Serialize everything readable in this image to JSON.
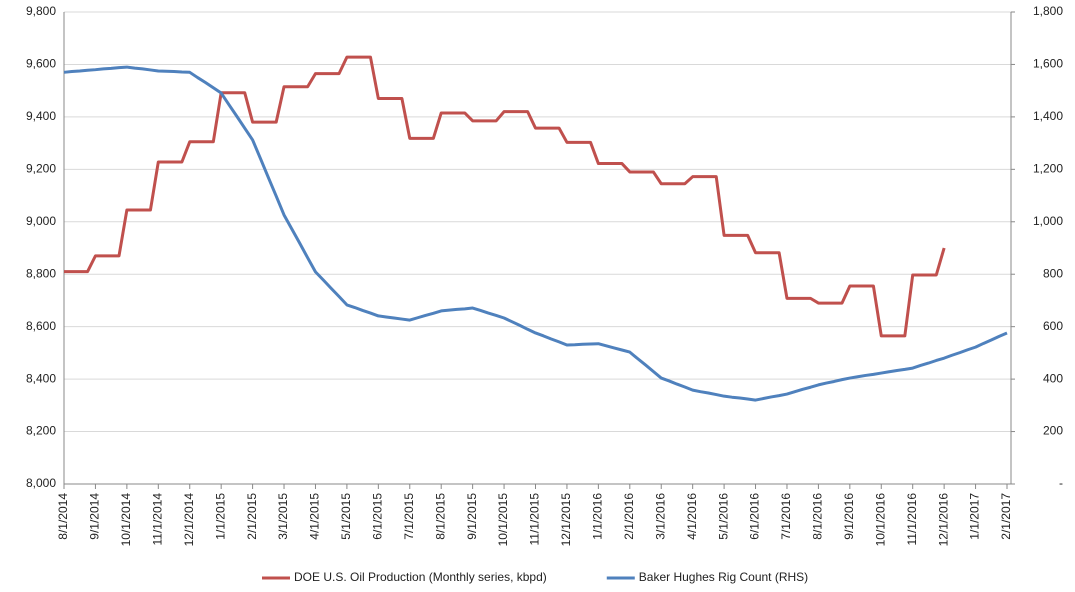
{
  "chart_data": {
    "type": "line",
    "categories": [
      "8/1/2014",
      null,
      null,
      null,
      "9/1/2014",
      null,
      null,
      null,
      "10/1/2014",
      null,
      null,
      null,
      "11/1/2014",
      null,
      null,
      null,
      "12/1/2014",
      null,
      null,
      null,
      "1/1/2015",
      null,
      null,
      null,
      "2/1/2015",
      null,
      null,
      null,
      "3/1/2015",
      null,
      null,
      null,
      "4/1/2015",
      null,
      null,
      null,
      "5/1/2015",
      null,
      null,
      null,
      "6/1/2015",
      null,
      null,
      null,
      "7/1/2015",
      null,
      null,
      null,
      "8/1/2015",
      null,
      null,
      null,
      "9/1/2015",
      null,
      null,
      null,
      "10/1/2015",
      null,
      null,
      null,
      "11/1/2015",
      null,
      null,
      null,
      "12/1/2015",
      null,
      null,
      null,
      "1/1/2016",
      null,
      null,
      null,
      "2/1/2016",
      null,
      null,
      null,
      "3/1/2016",
      null,
      null,
      null,
      "4/1/2016",
      null,
      null,
      null,
      "5/1/2016",
      null,
      null,
      null,
      "6/1/2016",
      null,
      null,
      null,
      "7/1/2016",
      null,
      null,
      null,
      "8/1/2016",
      null,
      null,
      null,
      "9/1/2016",
      null,
      null,
      null,
      "10/1/2016",
      null,
      null,
      null,
      "11/1/2016",
      null,
      null,
      null,
      "12/1/2016",
      null,
      null,
      null,
      "1/1/2017",
      null,
      null,
      null,
      "2/1/2017"
    ],
    "series": [
      {
        "name": "DOE U.S. Oil Production (Monthly series, kbpd)",
        "color": "#c0504d",
        "values": [
          8810,
          8810,
          8810,
          8810,
          8870,
          8870,
          8870,
          8870,
          9045,
          9045,
          9045,
          9045,
          9228,
          9228,
          9228,
          9228,
          9305,
          9305,
          9305,
          9305,
          9492,
          9492,
          9492,
          9492,
          9380,
          9380,
          9380,
          9380,
          9515,
          9515,
          9515,
          9515,
          9565,
          9565,
          9565,
          9565,
          9628,
          9628,
          9628,
          9628,
          9470,
          9470,
          9470,
          9470,
          9318,
          9318,
          9318,
          9318,
          9415,
          9415,
          9415,
          9415,
          9385,
          9385,
          9385,
          9385,
          9420,
          9420,
          9420,
          9420,
          9357,
          9357,
          9357,
          9357,
          9303,
          9303,
          9303,
          9303,
          9222,
          9222,
          9222,
          9222,
          9190,
          9190,
          9190,
          9190,
          9145,
          9145,
          9145,
          9145,
          9172,
          9172,
          9172,
          9172,
          8948,
          8948,
          8948,
          8948,
          8882,
          8882,
          8882,
          8882,
          8708,
          8708,
          8708,
          8708,
          8690,
          8690,
          8690,
          8690,
          8755,
          8755,
          8755,
          8755,
          8565,
          8565,
          8565,
          8565,
          8797,
          8797,
          8797,
          8797,
          8900,
          null,
          null,
          null,
          null,
          null,
          null,
          null,
          null
        ]
      },
      {
        "name": "Baker Hughes Rig Count (RHS)",
        "color": "#4f81bd",
        "axis": "y2",
        "values": [
          1570,
          1573,
          1575,
          1578,
          1580,
          1583,
          1585,
          1588,
          1590,
          1586,
          1583,
          1579,
          1575,
          1574,
          1573,
          1571,
          1570,
          1550,
          1531,
          1511,
          1491,
          1446,
          1402,
          1357,
          1312,
          1241,
          1169,
          1098,
          1026,
          972,
          918,
          863,
          809,
          778,
          746,
          715,
          683,
          673,
          662,
          652,
          641,
          637,
          633,
          629,
          625,
          634,
          643,
          651,
          660,
          663,
          666,
          668,
          671,
          662,
          652,
          643,
          633,
          619,
          605,
          590,
          576,
          565,
          553,
          542,
          530,
          531,
          533,
          534,
          535,
          527,
          519,
          511,
          503,
          478,
          454,
          429,
          404,
          393,
          381,
          370,
          358,
          352,
          347,
          341,
          335,
          331,
          328,
          324,
          320,
          326,
          332,
          337,
          343,
          352,
          361,
          369,
          378,
          385,
          391,
          398,
          404,
          409,
          414,
          418,
          423,
          428,
          433,
          437,
          442,
          452,
          461,
          471,
          480,
          491,
          501,
          512,
          522,
          536,
          549,
          563,
          576
        ]
      }
    ],
    "ylim": [
      8000,
      9800
    ],
    "yticks": [
      {
        "value": 8000,
        "label": "8,000"
      },
      {
        "value": 8200,
        "label": "8,200"
      },
      {
        "value": 8400,
        "label": "8,400"
      },
      {
        "value": 8600,
        "label": "8,600"
      },
      {
        "value": 8800,
        "label": "8,800"
      },
      {
        "value": 9000,
        "label": "9,000"
      },
      {
        "value": 9200,
        "label": "9,200"
      },
      {
        "value": 9400,
        "label": "9,400"
      },
      {
        "value": 9600,
        "label": "9,600"
      },
      {
        "value": 9800,
        "label": "9,800"
      }
    ],
    "y2lim": [
      0,
      1800
    ],
    "y2ticks": [
      {
        "value": 0,
        "label": "-"
      },
      200,
      400,
      600,
      800,
      {
        "value": 1000,
        "label": "1,000"
      },
      {
        "value": 1200,
        "label": "1,200"
      },
      {
        "value": 1400,
        "label": "1,400"
      },
      {
        "value": 1600,
        "label": "1,600"
      },
      {
        "value": 1800,
        "label": "1,800"
      }
    ],
    "grid": true,
    "legend": "bottom"
  }
}
